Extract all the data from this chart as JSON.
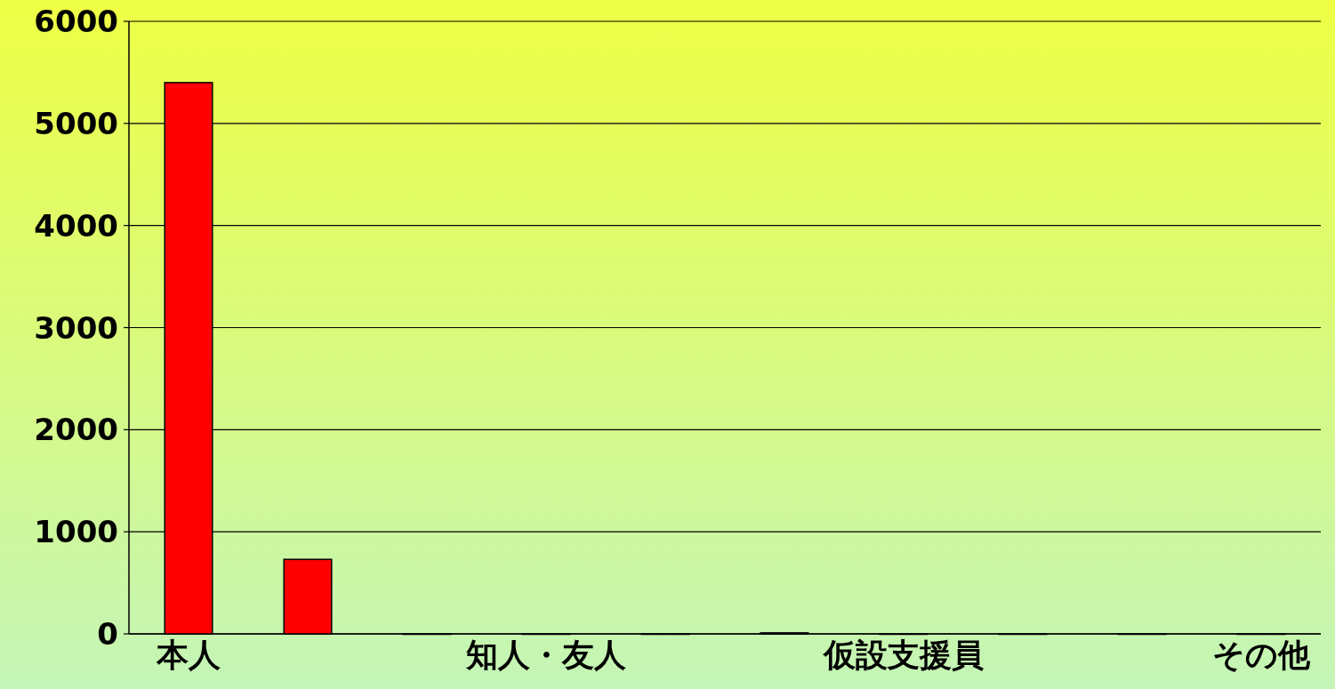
{
  "chart_data": {
    "type": "bar",
    "categories": [
      "本人",
      null,
      null,
      "知人・友人",
      null,
      null,
      "仮設支援員",
      null,
      null,
      "その他"
    ],
    "values": [
      5400,
      730,
      0,
      0,
      0,
      10,
      0,
      0,
      0,
      0
    ],
    "color": "#ff0000",
    "ylim": [
      0,
      6000
    ],
    "yticks": [
      0,
      1000,
      2000,
      3000,
      4000,
      5000,
      6000
    ],
    "grid": "y"
  }
}
